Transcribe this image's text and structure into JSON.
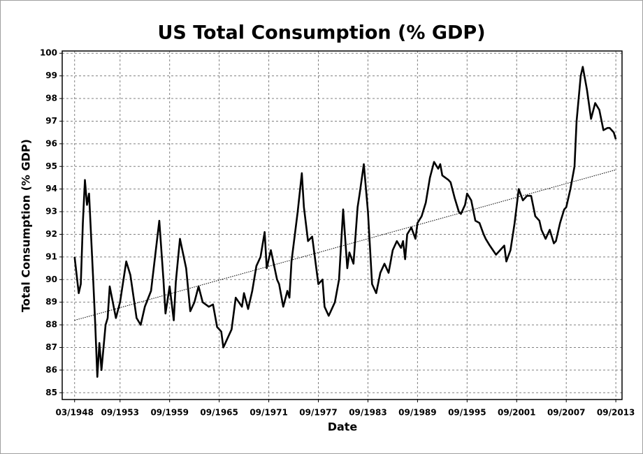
{
  "chart_data": {
    "type": "line",
    "title": "US Total Consumption (% GDP)",
    "xlabel": "Date",
    "ylabel": "Total Consumption (% GDP)",
    "xlim": [
      "09/1946",
      "06/2014"
    ],
    "xticks": [
      "03/1948",
      "09/1953",
      "09/1959",
      "09/1965",
      "09/1971",
      "09/1977",
      "09/1983",
      "09/1989",
      "09/1995",
      "09/2001",
      "09/2007",
      "09/2013"
    ],
    "ylim": [
      84.7,
      100.1
    ],
    "yticks": [
      85,
      86,
      87,
      88,
      89,
      90,
      91,
      92,
      93,
      94,
      95,
      96,
      97,
      98,
      99,
      100
    ],
    "grid": true,
    "series": [
      {
        "color": "#000000",
        "width": 2.6,
        "dash": "none",
        "x": [
          "03/1948",
          "09/1948",
          "12/1948",
          "03/1949",
          "06/1949",
          "09/1949",
          "12/1949",
          "06/1950",
          "09/1950",
          "12/1950",
          "03/1951",
          "06/1951",
          "12/1951",
          "03/1952",
          "06/1952",
          "03/1953",
          "09/1953",
          "06/1954",
          "12/1954",
          "09/1955",
          "03/1956",
          "09/1956",
          "06/1957",
          "06/1958",
          "12/1958",
          "03/1959",
          "09/1959",
          "03/1960",
          "06/1960",
          "12/1960",
          "09/1961",
          "03/1962",
          "09/1962",
          "03/1963",
          "09/1963",
          "06/1964",
          "12/1964",
          "06/1965",
          "12/1965",
          "03/1966",
          "12/1966",
          "03/1967",
          "09/1967",
          "06/1968",
          "09/1968",
          "03/1969",
          "09/1969",
          "03/1970",
          "09/1970",
          "03/1971",
          "06/1971",
          "12/1971",
          "09/1972",
          "12/1972",
          "06/1973",
          "12/1973",
          "03/1974",
          "06/1974",
          "03/1975",
          "09/1975",
          "12/1975",
          "06/1976",
          "12/1976",
          "06/1977",
          "09/1977",
          "03/1978",
          "06/1978",
          "12/1978",
          "06/1979",
          "09/1979",
          "03/1980",
          "09/1980",
          "03/1981",
          "06/1981",
          "12/1981",
          "06/1982",
          "09/1982",
          "03/1983",
          "09/1983",
          "03/1984",
          "09/1984",
          "03/1985",
          "09/1985",
          "03/1986",
          "09/1986",
          "03/1987",
          "09/1987",
          "12/1987",
          "03/1988",
          "06/1988",
          "12/1988",
          "06/1989",
          "09/1989",
          "03/1990",
          "09/1990",
          "03/1991",
          "09/1991",
          "03/1992",
          "06/1992",
          "09/1992",
          "06/1993",
          "09/1993",
          "03/1994",
          "09/1994",
          "12/1994",
          "06/1995",
          "09/1995",
          "03/1996",
          "09/1996",
          "03/1997",
          "09/1997",
          "12/1997",
          "06/1998",
          "03/1999",
          "09/1999",
          "03/2000",
          "06/2000",
          "12/2000",
          "06/2001",
          "12/2001",
          "06/2002",
          "12/2002",
          "06/2003",
          "12/2003",
          "06/2004",
          "09/2004",
          "03/2005",
          "09/2005",
          "03/2006",
          "06/2006",
          "12/2006",
          "06/2007",
          "09/2007",
          "03/2008",
          "09/2008",
          "12/2008",
          "06/2009",
          "09/2009",
          "03/2010",
          "09/2010",
          "03/2011",
          "09/2011",
          "03/2012",
          "09/2012",
          "12/2012",
          "06/2013",
          "09/2013"
        ],
        "values": [
          91.0,
          89.4,
          89.8,
          92.5,
          94.4,
          93.3,
          93.8,
          90.0,
          88.0,
          85.7,
          87.2,
          86.0,
          88.0,
          88.3,
          89.7,
          88.3,
          89.0,
          90.8,
          90.2,
          88.3,
          88.0,
          88.8,
          89.5,
          92.6,
          90.0,
          88.5,
          89.7,
          88.2,
          89.9,
          91.8,
          90.5,
          88.6,
          89.0,
          89.7,
          89.0,
          88.8,
          88.9,
          87.9,
          87.7,
          87.0,
          87.6,
          87.8,
          89.2,
          88.8,
          89.4,
          88.7,
          89.5,
          90.6,
          91.0,
          92.1,
          90.5,
          91.3,
          90.0,
          89.8,
          88.8,
          89.5,
          89.2,
          90.8,
          93.0,
          94.7,
          93.2,
          91.7,
          91.9,
          90.5,
          89.8,
          90.0,
          88.8,
          88.4,
          88.8,
          89.0,
          90.0,
          93.1,
          90.5,
          91.2,
          90.7,
          93.2,
          93.8,
          95.1,
          93.0,
          89.8,
          89.4,
          90.3,
          90.7,
          90.3,
          91.3,
          91.7,
          91.4,
          91.7,
          90.9,
          92.0,
          92.3,
          91.8,
          92.5,
          92.8,
          93.4,
          94.5,
          95.2,
          94.9,
          95.1,
          94.6,
          94.4,
          94.3,
          93.6,
          93.0,
          92.9,
          93.3,
          93.8,
          93.5,
          92.6,
          92.5,
          92.0,
          91.8,
          91.5,
          91.1,
          91.3,
          91.5,
          90.8,
          91.3,
          92.5,
          94.0,
          93.5,
          93.7,
          93.7,
          92.8,
          92.6,
          92.2,
          91.8,
          92.2,
          91.6,
          91.7,
          92.5,
          93.1,
          93.2,
          94.0,
          95.0,
          97.0,
          99.0,
          99.4,
          98.4,
          97.1,
          97.8,
          97.5,
          96.6,
          96.7,
          96.7,
          96.5,
          96.2
        ]
      },
      {
        "color": "#000000",
        "width": 1,
        "dash": "1.5 1.5",
        "x": [
          "03/1948",
          "09/2013"
        ],
        "values": [
          88.2,
          94.85
        ]
      }
    ]
  }
}
